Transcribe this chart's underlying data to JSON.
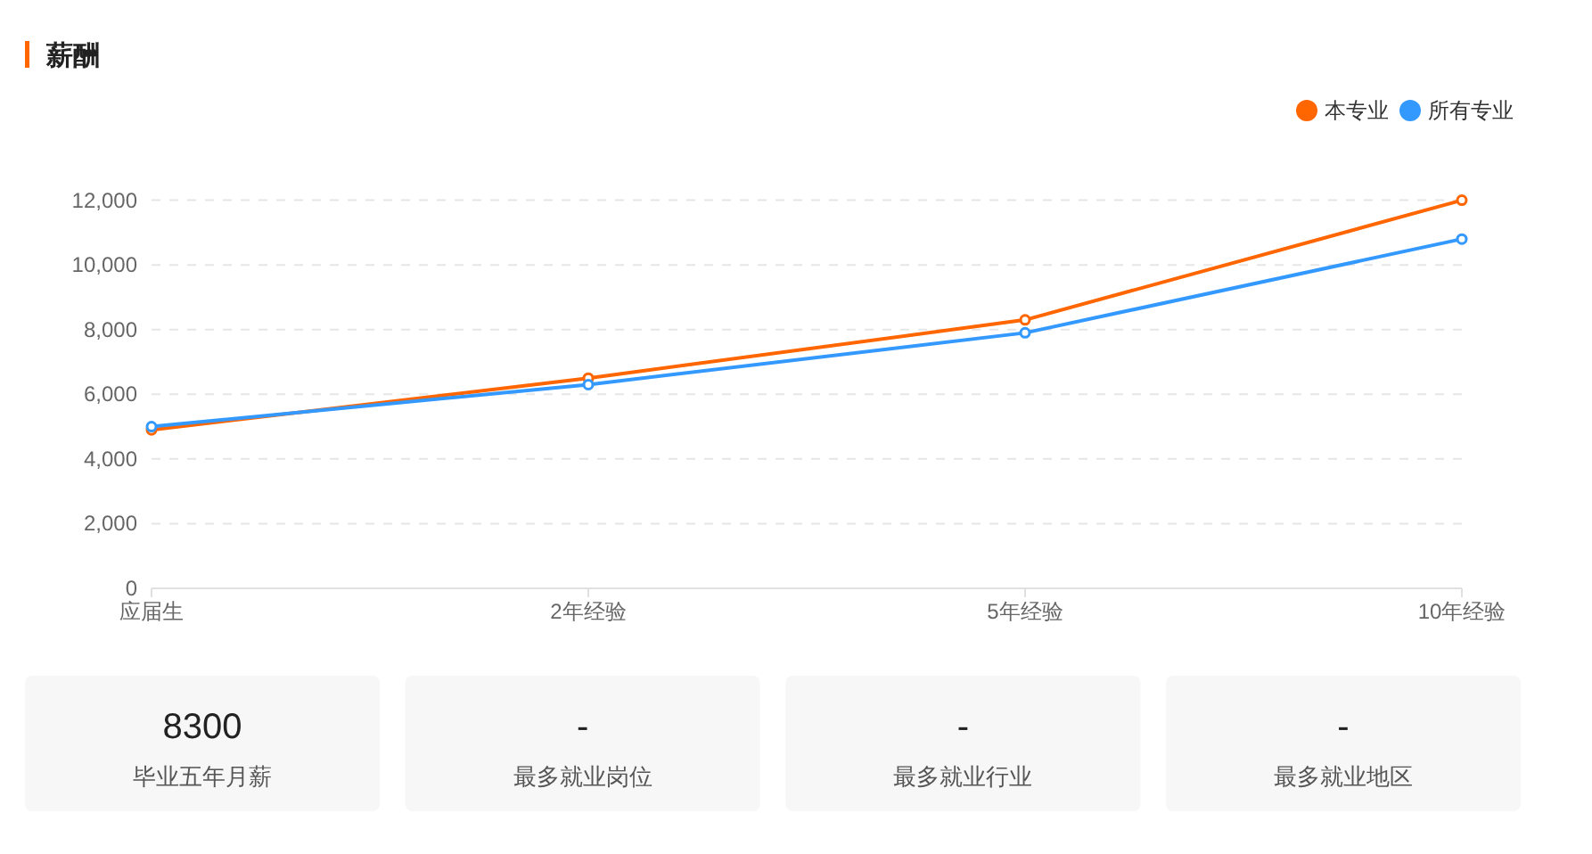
{
  "chart_data": [
    {
      "type": "line",
      "title": "薪酬",
      "categories": [
        "应届生",
        "2年经验",
        "5年经验",
        "10年经验"
      ],
      "series": [
        {
          "name": "本专业",
          "color": "#ff6600",
          "values": [
            4900,
            6500,
            8300,
            12000
          ]
        },
        {
          "name": "所有专业",
          "color": "#3399ff",
          "values": [
            5000,
            6300,
            7900,
            10800
          ]
        }
      ],
      "ylim": [
        0,
        12000
      ],
      "yticks": [
        0,
        {
          "value": 2000,
          "label": "2,000"
        },
        {
          "value": 4000,
          "label": "4,000"
        },
        {
          "value": 6000,
          "label": "6,000"
        },
        {
          "value": 8000,
          "label": "8,000"
        },
        {
          "value": 10000,
          "label": "10,000"
        },
        {
          "value": 12000,
          "label": "12,000"
        }
      ],
      "grid": "y",
      "legend": "top right",
      "marker": "circle",
      "line_style": "solid"
    },
    {
      "type": "other",
      "annotations": [
        "8300",
        "毕业五年月薪"
      ]
    },
    {
      "type": "other",
      "annotations": [
        "-",
        "最多就业岗位"
      ]
    },
    {
      "type": "other",
      "annotations": [
        "-",
        "最多就业行业"
      ]
    },
    {
      "type": "other",
      "annotations": [
        "-",
        "最多就业地区"
      ]
    }
  ]
}
